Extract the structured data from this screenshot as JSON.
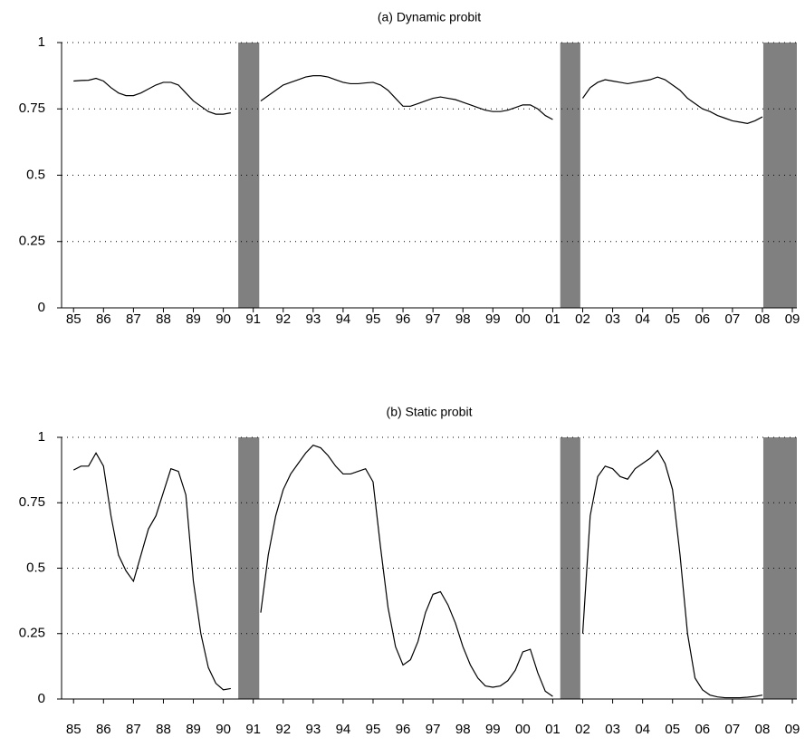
{
  "chart_data": [
    {
      "type": "line",
      "title": "(a) Dynamic probit",
      "x": [
        1985,
        1985.25,
        1985.5,
        1985.75,
        1986,
        1986.25,
        1986.5,
        1986.75,
        1987,
        1987.25,
        1987.5,
        1987.75,
        1988,
        1988.25,
        1988.5,
        1988.75,
        1989,
        1989.25,
        1989.5,
        1989.75,
        1990,
        1990.25,
        1990.5,
        1990.75,
        1991,
        1991.25,
        1991.5,
        1991.75,
        1992,
        1992.25,
        1992.5,
        1992.75,
        1993,
        1993.25,
        1993.5,
        1993.75,
        1994,
        1994.25,
        1994.5,
        1994.75,
        1995,
        1995.25,
        1995.5,
        1995.75,
        1996,
        1996.25,
        1996.5,
        1996.75,
        1997,
        1997.25,
        1997.5,
        1997.75,
        1998,
        1998.25,
        1998.5,
        1998.75,
        1999,
        1999.25,
        1999.5,
        1999.75,
        2000,
        2000.25,
        2000.5,
        2000.75,
        2001,
        2001.25,
        2001.5,
        2001.75,
        2002,
        2002.25,
        2002.5,
        2002.75,
        2003,
        2003.25,
        2003.5,
        2003.75,
        2004,
        2004.25,
        2004.5,
        2004.75,
        2005,
        2005.25,
        2005.5,
        2005.75,
        2006,
        2006.25,
        2006.5,
        2006.75,
        2007,
        2007.25,
        2007.5,
        2007.75,
        2008
      ],
      "series": [
        {
          "color": "#000000",
          "values": [
            0.855,
            0.857,
            0.858,
            0.865,
            0.855,
            0.83,
            0.81,
            0.8,
            0.8,
            0.81,
            0.825,
            0.84,
            0.85,
            0.85,
            0.84,
            0.81,
            0.78,
            0.76,
            0.74,
            0.73,
            0.73,
            0.735,
            null,
            null,
            null,
            0.78,
            0.8,
            0.82,
            0.84,
            0.85,
            0.86,
            0.87,
            0.875,
            0.875,
            0.87,
            0.86,
            0.85,
            0.845,
            0.845,
            0.848,
            0.85,
            0.84,
            0.82,
            0.79,
            0.76,
            0.76,
            0.77,
            0.78,
            0.79,
            0.795,
            0.79,
            0.785,
            0.775,
            0.765,
            0.755,
            0.745,
            0.74,
            0.74,
            0.745,
            0.755,
            0.765,
            0.765,
            0.75,
            0.725,
            0.71,
            null,
            null,
            null,
            0.79,
            0.83,
            0.85,
            0.86,
            0.855,
            0.85,
            0.845,
            0.85,
            0.855,
            0.86,
            0.87,
            0.86,
            0.84,
            0.82,
            0.79,
            0.77,
            0.75,
            0.74,
            0.725,
            0.715,
            0.705,
            0.7,
            0.695,
            0.705,
            0.72
          ]
        }
      ],
      "shading": [
        [
          1990.5,
          1991.2
        ],
        [
          2001.25,
          2001.92
        ],
        [
          2008.03,
          2009.15
        ]
      ],
      "shading_color": "#808080",
      "xlim": [
        1984.6,
        2009.15
      ],
      "ylim": [
        0,
        1
      ],
      "yticks": [
        0,
        0.25,
        0.5,
        0.75,
        1
      ],
      "xticks": [
        {
          "value": 1985,
          "label": "85"
        },
        {
          "value": 1986,
          "label": "86"
        },
        {
          "value": 1987,
          "label": "87"
        },
        {
          "value": 1988,
          "label": "88"
        },
        {
          "value": 1989,
          "label": "89"
        },
        {
          "value": 1990,
          "label": "90"
        },
        {
          "value": 1991,
          "label": "91"
        },
        {
          "value": 1992,
          "label": "92"
        },
        {
          "value": 1993,
          "label": "93"
        },
        {
          "value": 1994,
          "label": "94"
        },
        {
          "value": 1995,
          "label": "95"
        },
        {
          "value": 1996,
          "label": "96"
        },
        {
          "value": 1997,
          "label": "97"
        },
        {
          "value": 1998,
          "label": "98"
        },
        {
          "value": 1999,
          "label": "99"
        },
        {
          "value": 2000,
          "label": "00"
        },
        {
          "value": 2001,
          "label": "01"
        },
        {
          "value": 2002,
          "label": "02"
        },
        {
          "value": 2003,
          "label": "03"
        },
        {
          "value": 2004,
          "label": "04"
        },
        {
          "value": 2005,
          "label": "05"
        },
        {
          "value": 2006,
          "label": "06"
        },
        {
          "value": 2007,
          "label": "07"
        },
        {
          "value": 2008,
          "label": "08"
        },
        {
          "value": 2009,
          "label": "09"
        }
      ],
      "grid": true
    },
    {
      "type": "line",
      "title": "(b) Static probit",
      "x": [
        1985,
        1985.25,
        1985.5,
        1985.75,
        1986,
        1986.25,
        1986.5,
        1986.75,
        1987,
        1987.25,
        1987.5,
        1987.75,
        1988,
        1988.25,
        1988.5,
        1988.75,
        1989,
        1989.25,
        1989.5,
        1989.75,
        1990,
        1990.25,
        1990.5,
        1990.75,
        1991,
        1991.25,
        1991.5,
        1991.75,
        1992,
        1992.25,
        1992.5,
        1992.75,
        1993,
        1993.25,
        1993.5,
        1993.75,
        1994,
        1994.25,
        1994.5,
        1994.75,
        1995,
        1995.25,
        1995.5,
        1995.75,
        1996,
        1996.25,
        1996.5,
        1996.75,
        1997,
        1997.25,
        1997.5,
        1997.75,
        1998,
        1998.25,
        1998.5,
        1998.75,
        1999,
        1999.25,
        1999.5,
        1999.75,
        2000,
        2000.25,
        2000.5,
        2000.75,
        2001,
        2001.25,
        2001.5,
        2001.75,
        2002,
        2002.25,
        2002.5,
        2002.75,
        2003,
        2003.25,
        2003.5,
        2003.75,
        2004,
        2004.25,
        2004.5,
        2004.75,
        2005,
        2005.25,
        2005.5,
        2005.75,
        2006,
        2006.25,
        2006.5,
        2006.75,
        2007,
        2007.25,
        2007.5,
        2007.75,
        2008
      ],
      "series": [
        {
          "color": "#000000",
          "values": [
            0.875,
            0.89,
            0.89,
            0.94,
            0.89,
            0.7,
            0.55,
            0.49,
            0.45,
            0.55,
            0.65,
            0.7,
            0.79,
            0.88,
            0.87,
            0.78,
            0.45,
            0.25,
            0.12,
            0.06,
            0.035,
            0.04,
            null,
            null,
            null,
            0.33,
            0.55,
            0.7,
            0.8,
            0.86,
            0.9,
            0.94,
            0.97,
            0.96,
            0.93,
            0.89,
            0.86,
            0.86,
            0.87,
            0.88,
            0.83,
            0.58,
            0.35,
            0.2,
            0.13,
            0.15,
            0.22,
            0.33,
            0.4,
            0.41,
            0.36,
            0.29,
            0.2,
            0.13,
            0.08,
            0.05,
            0.045,
            0.05,
            0.07,
            0.11,
            0.18,
            0.19,
            0.1,
            0.03,
            0.01,
            null,
            null,
            null,
            0.25,
            0.7,
            0.85,
            0.89,
            0.88,
            0.85,
            0.84,
            0.88,
            0.9,
            0.92,
            0.95,
            0.9,
            0.8,
            0.55,
            0.25,
            0.08,
            0.035,
            0.015,
            0.008,
            0.005,
            0.005,
            0.005,
            0.007,
            0.01,
            0.015
          ]
        }
      ],
      "shading": [
        [
          1990.5,
          1991.2
        ],
        [
          2001.25,
          2001.92
        ],
        [
          2008.03,
          2009.15
        ]
      ],
      "shading_color": "#808080",
      "xlim": [
        1984.6,
        2009.15
      ],
      "ylim": [
        0,
        1
      ],
      "yticks": [
        0,
        0.25,
        0.5,
        0.75,
        1
      ],
      "xticks": [
        {
          "value": 1985,
          "label": "85"
        },
        {
          "value": 1986,
          "label": "86"
        },
        {
          "value": 1987,
          "label": "87"
        },
        {
          "value": 1988,
          "label": "88"
        },
        {
          "value": 1989,
          "label": "89"
        },
        {
          "value": 1990,
          "label": "90"
        },
        {
          "value": 1991,
          "label": "91"
        },
        {
          "value": 1992,
          "label": "92"
        },
        {
          "value": 1993,
          "label": "93"
        },
        {
          "value": 1994,
          "label": "94"
        },
        {
          "value": 1995,
          "label": "95"
        },
        {
          "value": 1996,
          "label": "96"
        },
        {
          "value": 1997,
          "label": "97"
        },
        {
          "value": 1998,
          "label": "98"
        },
        {
          "value": 1999,
          "label": "99"
        },
        {
          "value": 2000,
          "label": "00"
        },
        {
          "value": 2001,
          "label": "01"
        },
        {
          "value": 2002,
          "label": "02"
        },
        {
          "value": 2003,
          "label": "03"
        },
        {
          "value": 2004,
          "label": "04"
        },
        {
          "value": 2005,
          "label": "05"
        },
        {
          "value": 2006,
          "label": "06"
        },
        {
          "value": 2007,
          "label": "07"
        },
        {
          "value": 2008,
          "label": "08"
        },
        {
          "value": 2009,
          "label": "09"
        }
      ],
      "grid": true
    }
  ]
}
